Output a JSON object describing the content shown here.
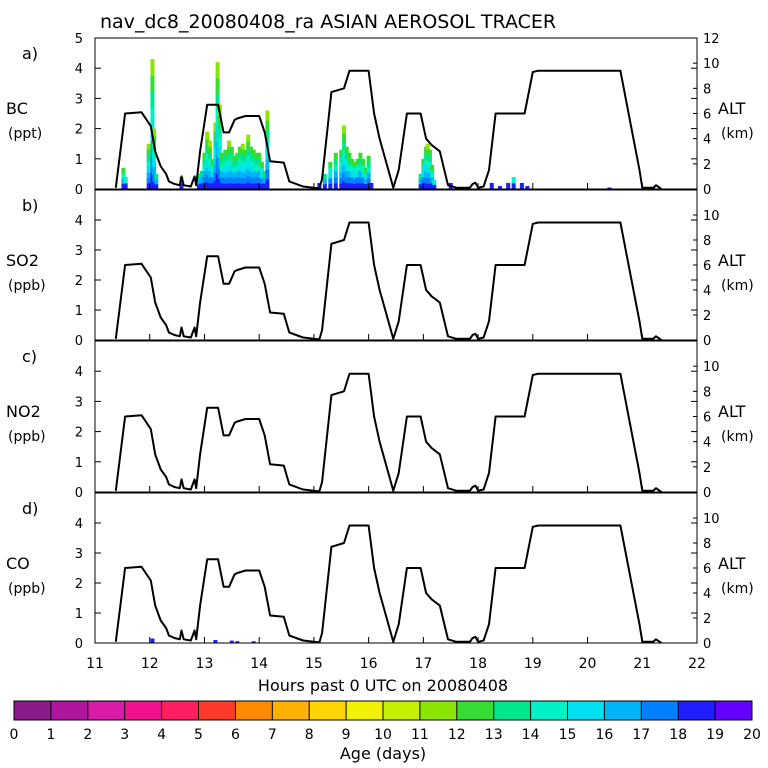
{
  "chart_data": {
    "type": "line",
    "title": "nav_dc8_20080408_ra ASIAN AEROSOL TRACER",
    "xlabel": "Hours past 0 UTC on 20080408",
    "xlim": [
      11,
      22
    ],
    "x_ticks": [
      "11",
      "12",
      "13",
      "14",
      "15",
      "16",
      "17",
      "18",
      "19",
      "20",
      "21",
      "22"
    ],
    "altitude_track": {
      "name": "ALT (km)",
      "points": [
        [
          11.38,
          0.1
        ],
        [
          11.55,
          6.0
        ],
        [
          11.85,
          6.1
        ],
        [
          12.02,
          5.0
        ],
        [
          12.1,
          3.0
        ],
        [
          12.2,
          1.8
        ],
        [
          12.3,
          1.2
        ],
        [
          12.35,
          0.6
        ],
        [
          12.45,
          0.4
        ],
        [
          12.55,
          0.3
        ],
        [
          12.58,
          1.0
        ],
        [
          12.62,
          0.3
        ],
        [
          12.75,
          0.2
        ],
        [
          12.82,
          1.0
        ],
        [
          12.85,
          0.3
        ],
        [
          12.92,
          3.0
        ],
        [
          13.05,
          6.7
        ],
        [
          13.25,
          6.7
        ],
        [
          13.35,
          4.5
        ],
        [
          13.45,
          4.5
        ],
        [
          13.55,
          5.5
        ],
        [
          13.6,
          5.6
        ],
        [
          13.75,
          5.8
        ],
        [
          14.0,
          5.8
        ],
        [
          14.1,
          4.5
        ],
        [
          14.2,
          2.2
        ],
        [
          14.45,
          2.1
        ],
        [
          14.55,
          0.6
        ],
        [
          14.8,
          0.2
        ],
        [
          15.1,
          0.05
        ],
        [
          15.15,
          0.8
        ],
        [
          15.32,
          7.7
        ],
        [
          15.55,
          8.0
        ],
        [
          15.65,
          9.4
        ],
        [
          16.0,
          9.4
        ],
        [
          16.1,
          6.0
        ],
        [
          16.2,
          4.0
        ],
        [
          16.45,
          0.1
        ],
        [
          16.55,
          1.5
        ],
        [
          16.7,
          6.0
        ],
        [
          16.95,
          6.0
        ],
        [
          17.05,
          4.0
        ],
        [
          17.15,
          3.5
        ],
        [
          17.3,
          3.0
        ],
        [
          17.45,
          0.3
        ],
        [
          17.6,
          0.1
        ],
        [
          17.85,
          0.1
        ],
        [
          17.9,
          0.4
        ],
        [
          17.95,
          0.5
        ],
        [
          18.0,
          0.1
        ],
        [
          18.1,
          0.2
        ],
        [
          18.2,
          1.5
        ],
        [
          18.32,
          6.0
        ],
        [
          18.85,
          6.0
        ],
        [
          19.0,
          9.3
        ],
        [
          19.1,
          9.4
        ],
        [
          20.6,
          9.4
        ],
        [
          20.75,
          6.0
        ],
        [
          20.95,
          1.5
        ],
        [
          21.0,
          0.1
        ],
        [
          21.2,
          0.1
        ],
        [
          21.25,
          0.3
        ],
        [
          21.35,
          0.0
        ]
      ]
    },
    "panels": [
      {
        "letter": "a)",
        "species": "BC",
        "units": "(ppt)",
        "ylim": [
          0,
          5
        ],
        "y_ticks": [
          "0",
          "1",
          "2",
          "3",
          "4",
          "5"
        ],
        "alt_ylim": [
          0,
          12
        ],
        "alt_ticks": [
          "0",
          "2",
          "4",
          "6",
          "8",
          "10",
          "12"
        ],
        "tracer_spikes": [
          {
            "x": 11.52,
            "value": 0.7
          },
          {
            "x": 11.56,
            "value": 0.4
          },
          {
            "x": 11.98,
            "value": 1.5
          },
          {
            "x": 12.05,
            "value": 4.3
          },
          {
            "x": 12.08,
            "value": 2.0
          },
          {
            "x": 12.12,
            "value": 0.5
          },
          {
            "x": 12.58,
            "value": 0.4
          },
          {
            "x": 12.9,
            "value": 0.5
          },
          {
            "x": 12.95,
            "value": 0.6
          },
          {
            "x": 13.0,
            "value": 1.2
          },
          {
            "x": 13.05,
            "value": 1.9
          },
          {
            "x": 13.1,
            "value": 1.6
          },
          {
            "x": 13.15,
            "value": 1.0
          },
          {
            "x": 13.2,
            "value": 2.2
          },
          {
            "x": 13.24,
            "value": 4.2
          },
          {
            "x": 13.28,
            "value": 2.8
          },
          {
            "x": 13.32,
            "value": 1.2
          },
          {
            "x": 13.38,
            "value": 1.3
          },
          {
            "x": 13.45,
            "value": 1.6
          },
          {
            "x": 13.5,
            "value": 1.4
          },
          {
            "x": 13.55,
            "value": 1.1
          },
          {
            "x": 13.6,
            "value": 1.2
          },
          {
            "x": 13.65,
            "value": 1.4
          },
          {
            "x": 13.7,
            "value": 1.5
          },
          {
            "x": 13.75,
            "value": 1.3
          },
          {
            "x": 13.8,
            "value": 1.8
          },
          {
            "x": 13.85,
            "value": 1.4
          },
          {
            "x": 13.9,
            "value": 1.3
          },
          {
            "x": 13.95,
            "value": 1.2
          },
          {
            "x": 14.0,
            "value": 1.2
          },
          {
            "x": 14.05,
            "value": 0.9
          },
          {
            "x": 14.1,
            "value": 0.6
          },
          {
            "x": 14.15,
            "value": 2.6
          },
          {
            "x": 15.1,
            "value": 0.2
          },
          {
            "x": 15.2,
            "value": 0.5
          },
          {
            "x": 15.3,
            "value": 0.9
          },
          {
            "x": 15.4,
            "value": 1.2
          },
          {
            "x": 15.5,
            "value": 1.3
          },
          {
            "x": 15.55,
            "value": 2.1
          },
          {
            "x": 15.6,
            "value": 1.4
          },
          {
            "x": 15.65,
            "value": 1.2
          },
          {
            "x": 15.7,
            "value": 1.0
          },
          {
            "x": 15.75,
            "value": 0.9
          },
          {
            "x": 15.8,
            "value": 1.0
          },
          {
            "x": 15.85,
            "value": 1.2
          },
          {
            "x": 15.9,
            "value": 1.0
          },
          {
            "x": 15.95,
            "value": 0.7
          },
          {
            "x": 16.0,
            "value": 1.1
          },
          {
            "x": 16.05,
            "value": 0.2
          },
          {
            "x": 16.95,
            "value": 0.5
          },
          {
            "x": 17.0,
            "value": 1.0
          },
          {
            "x": 17.05,
            "value": 1.4
          },
          {
            "x": 17.08,
            "value": 1.5
          },
          {
            "x": 17.12,
            "value": 1.3
          },
          {
            "x": 17.16,
            "value": 0.8
          },
          {
            "x": 17.2,
            "value": 0.3
          },
          {
            "x": 17.5,
            "value": 0.2
          },
          {
            "x": 18.25,
            "value": 0.2
          },
          {
            "x": 18.4,
            "value": 0.1
          },
          {
            "x": 18.55,
            "value": 0.2
          },
          {
            "x": 18.65,
            "value": 0.4
          },
          {
            "x": 18.8,
            "value": 0.2
          },
          {
            "x": 18.9,
            "value": 0.1
          },
          {
            "x": 20.4,
            "value": 0.05
          },
          {
            "x": 21.2,
            "value": 0.05
          }
        ]
      },
      {
        "letter": "b)",
        "species": "SO2",
        "units": "(ppb)",
        "ylim": [
          0,
          5
        ],
        "y_ticks": [
          "0",
          "1",
          "2",
          "3",
          "4"
        ],
        "alt_ylim": [
          0,
          12
        ],
        "alt_ticks": [
          "0",
          "2",
          "4",
          "6",
          "8",
          "10"
        ],
        "tracer_spikes": []
      },
      {
        "letter": "c)",
        "species": "NO2",
        "units": "(ppb)",
        "ylim": [
          0,
          5
        ],
        "y_ticks": [
          "0",
          "1",
          "2",
          "3",
          "4"
        ],
        "alt_ylim": [
          0,
          12
        ],
        "alt_ticks": [
          "0",
          "2",
          "4",
          "6",
          "8",
          "10"
        ],
        "tracer_spikes": []
      },
      {
        "letter": "d)",
        "species": "CO",
        "units": "(ppb)",
        "ylim": [
          0,
          5
        ],
        "y_ticks": [
          "0",
          "1",
          "2",
          "3",
          "4"
        ],
        "alt_ylim": [
          0,
          12
        ],
        "alt_ticks": [
          "0",
          "2",
          "4",
          "6",
          "8",
          "10"
        ],
        "tracer_spikes": [
          {
            "x": 12.05,
            "value": 0.15
          },
          {
            "x": 13.2,
            "value": 0.1
          },
          {
            "x": 13.5,
            "value": 0.08
          },
          {
            "x": 13.6,
            "value": 0.06
          },
          {
            "x": 13.9,
            "value": 0.06
          }
        ]
      }
    ],
    "alt_axis_label": "ALT",
    "alt_axis_units": "(km)",
    "colorbar": {
      "label": "Age (days)",
      "ticks": [
        "0",
        "1",
        "2",
        "3",
        "4",
        "5",
        "6",
        "7",
        "8",
        "9",
        "10",
        "11",
        "12",
        "13",
        "14",
        "15",
        "16",
        "17",
        "18",
        "19",
        "20"
      ],
      "colors": [
        "#8b1a8b",
        "#b0159e",
        "#d81ba8",
        "#f0118f",
        "#ff1f60",
        "#ff3a2a",
        "#ff8a00",
        "#ffb000",
        "#ffd500",
        "#f2f200",
        "#c4f000",
        "#8ae600",
        "#33dd33",
        "#00e68c",
        "#00f0c8",
        "#00e0f0",
        "#00b4f8",
        "#0080ff",
        "#1e1eff",
        "#6400ff"
      ]
    }
  }
}
